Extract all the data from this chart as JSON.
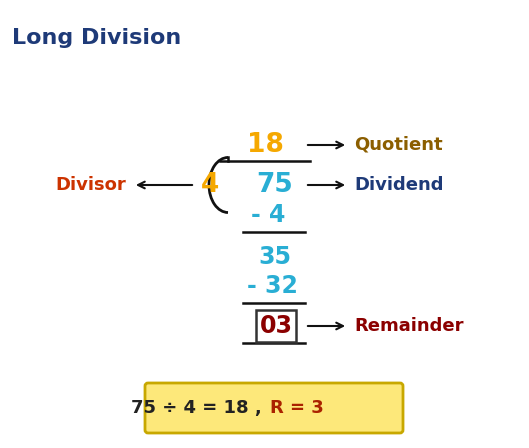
{
  "title": "Long Division",
  "title_color": "#1e3a78",
  "title_fontsize": 16,
  "bg_color": "#ffffff",
  "quotient_text": "18",
  "quotient_color": "#f5a800",
  "divisor_text": "4",
  "divisor_color": "#f5a800",
  "dividend_text": "75",
  "dividend_color": "#29aed4",
  "step1_text": "- 4",
  "step1_color": "#29aed4",
  "step2_text": "35",
  "step2_color": "#29aed4",
  "step3_text": "- 32",
  "step3_color": "#29aed4",
  "remainder_text": "03",
  "remainder_color": "#8b0000",
  "label_quotient": "Quotient",
  "label_quotient_color": "#8b5e00",
  "label_dividend": "Dividend",
  "label_dividend_color": "#1e3a78",
  "label_divisor": "Divisor",
  "label_divisor_color": "#cc3300",
  "label_remainder": "Remainder",
  "label_remainder_color": "#8b0000",
  "summary_text": "75 ÷ 4 = 18 , ",
  "summary_r": "R = 3",
  "summary_color": "#222222",
  "summary_r_color": "#aa2200",
  "summary_box_color": "#fde87a",
  "summary_box_border": "#c8a800",
  "line_color": "#111111",
  "arrow_color": "#111111"
}
